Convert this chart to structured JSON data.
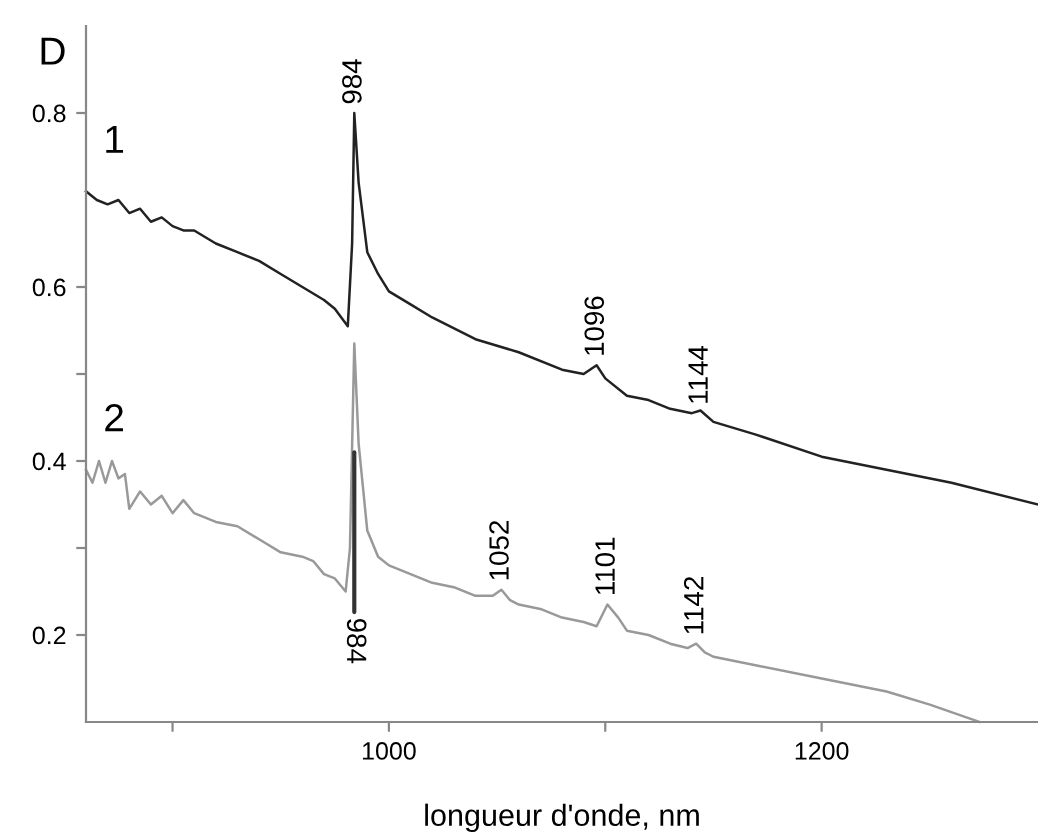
{
  "chart_data": {
    "type": "line",
    "ylabel": "D",
    "xlabel": "longueur d'onde, nm",
    "xlim": [
      860,
      1300
    ],
    "xticks": [
      {
        "value": 900,
        "label": null
      },
      1000,
      {
        "value": 1100,
        "label": null
      },
      1200
    ],
    "ylim": [
      0.1,
      0.9
    ],
    "yticks": [
      0.2,
      {
        "value": 0.3,
        "label": null
      },
      0.4,
      {
        "value": 0.5,
        "label": null
      },
      0.6,
      0.8
    ],
    "grid": false,
    "legend": false,
    "marker": "none",
    "line_style": "solid",
    "series": [
      {
        "name": "1",
        "color": "#222222",
        "x": [
          860,
          865,
          870,
          875,
          880,
          885,
          890,
          895,
          900,
          905,
          910,
          920,
          930,
          940,
          950,
          960,
          970,
          975,
          978,
          981,
          983,
          984,
          986,
          990,
          995,
          1000,
          1010,
          1020,
          1040,
          1060,
          1080,
          1090,
          1096,
          1100,
          1110,
          1120,
          1130,
          1140,
          1144,
          1150,
          1170,
          1200,
          1230,
          1260,
          1300
        ],
        "values": [
          0.71,
          0.7,
          0.695,
          0.7,
          0.685,
          0.69,
          0.675,
          0.68,
          0.67,
          0.665,
          0.665,
          0.65,
          0.64,
          0.63,
          0.615,
          0.6,
          0.585,
          0.575,
          0.565,
          0.555,
          0.65,
          0.8,
          0.72,
          0.64,
          0.615,
          0.595,
          0.58,
          0.565,
          0.54,
          0.525,
          0.505,
          0.5,
          0.51,
          0.495,
          0.475,
          0.47,
          0.46,
          0.455,
          0.458,
          0.445,
          0.43,
          0.405,
          0.39,
          0.375,
          0.35
        ]
      },
      {
        "name": "2",
        "color": "#999999",
        "x": [
          860,
          863,
          866,
          869,
          872,
          875,
          878,
          880,
          885,
          890,
          895,
          900,
          905,
          910,
          920,
          930,
          940,
          950,
          960,
          965,
          970,
          975,
          980,
          982,
          984,
          986,
          990,
          995,
          1000,
          1010,
          1020,
          1030,
          1040,
          1048,
          1052,
          1056,
          1060,
          1070,
          1080,
          1090,
          1096,
          1101,
          1106,
          1110,
          1120,
          1130,
          1138,
          1142,
          1146,
          1150,
          1170,
          1200,
          1230,
          1250,
          1273
        ],
        "values": [
          0.39,
          0.375,
          0.4,
          0.375,
          0.4,
          0.38,
          0.385,
          0.345,
          0.365,
          0.35,
          0.36,
          0.34,
          0.355,
          0.34,
          0.33,
          0.325,
          0.31,
          0.295,
          0.29,
          0.285,
          0.27,
          0.265,
          0.25,
          0.3,
          0.535,
          0.42,
          0.32,
          0.29,
          0.28,
          0.27,
          0.26,
          0.255,
          0.245,
          0.245,
          0.252,
          0.24,
          0.235,
          0.23,
          0.22,
          0.215,
          0.21,
          0.235,
          0.22,
          0.205,
          0.2,
          0.19,
          0.185,
          0.19,
          0.18,
          0.175,
          0.165,
          0.15,
          0.135,
          0.12,
          0.1
        ]
      }
    ],
    "annotations": [
      {
        "text": "984",
        "x": 984,
        "y": 0.8
      },
      {
        "text": "1096",
        "x": 1096,
        "y": 0.51
      },
      {
        "text": "1144",
        "x": 1144,
        "y": 0.455
      },
      {
        "text": "1052",
        "x": 1052,
        "y": 0.252
      },
      {
        "text": "1101",
        "x": 1101,
        "y": 0.235
      },
      {
        "text": "1142",
        "x": 1142,
        "y": 0.19
      },
      {
        "text": "984",
        "x": 984,
        "y": 0.41
      }
    ]
  }
}
